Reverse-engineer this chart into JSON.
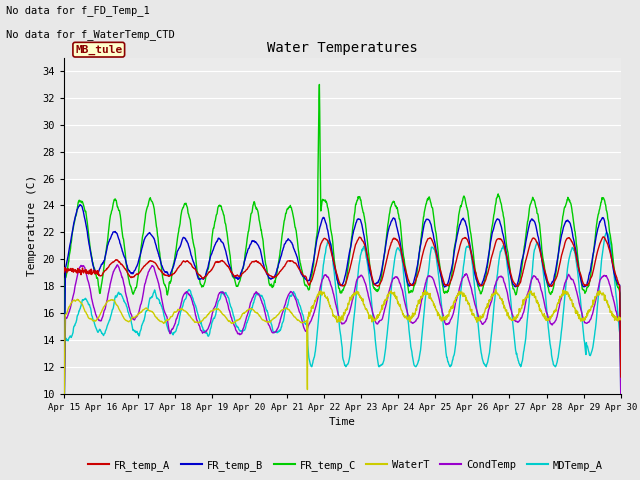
{
  "title": "Water Temperatures",
  "ylabel": "Temperature (C)",
  "xlabel": "Time",
  "text_lines": [
    "No data for f_FD_Temp_1",
    "No data for f_WaterTemp_CTD"
  ],
  "annotation_box": "MB_tule",
  "ylim": [
    10,
    35
  ],
  "yticks": [
    10,
    12,
    14,
    16,
    18,
    20,
    22,
    24,
    26,
    28,
    30,
    32,
    34
  ],
  "xtick_labels": [
    "Apr 15",
    "Apr 16",
    "Apr 17",
    "Apr 18",
    "Apr 19",
    "Apr 20",
    "Apr 21",
    "Apr 22",
    "Apr 23",
    "Apr 24",
    "Apr 25",
    "Apr 26",
    "Apr 27",
    "Apr 28",
    "Apr 29",
    "Apr 30"
  ],
  "series_colors": {
    "FR_temp_A": "#cc0000",
    "FR_temp_B": "#0000cc",
    "FR_temp_C": "#00cc00",
    "WaterT": "#cccc00",
    "CondTemp": "#9900cc",
    "MDTemp_A": "#00cccc"
  },
  "legend_labels": [
    "FR_temp_A",
    "FR_temp_B",
    "FR_temp_C",
    "WaterT",
    "CondTemp",
    "MDTemp_A"
  ],
  "background_color": "#e8e8e8",
  "plot_bg_color": "#ebebeb",
  "grid_color": "#ffffff",
  "figsize": [
    6.4,
    4.8
  ],
  "dpi": 100
}
